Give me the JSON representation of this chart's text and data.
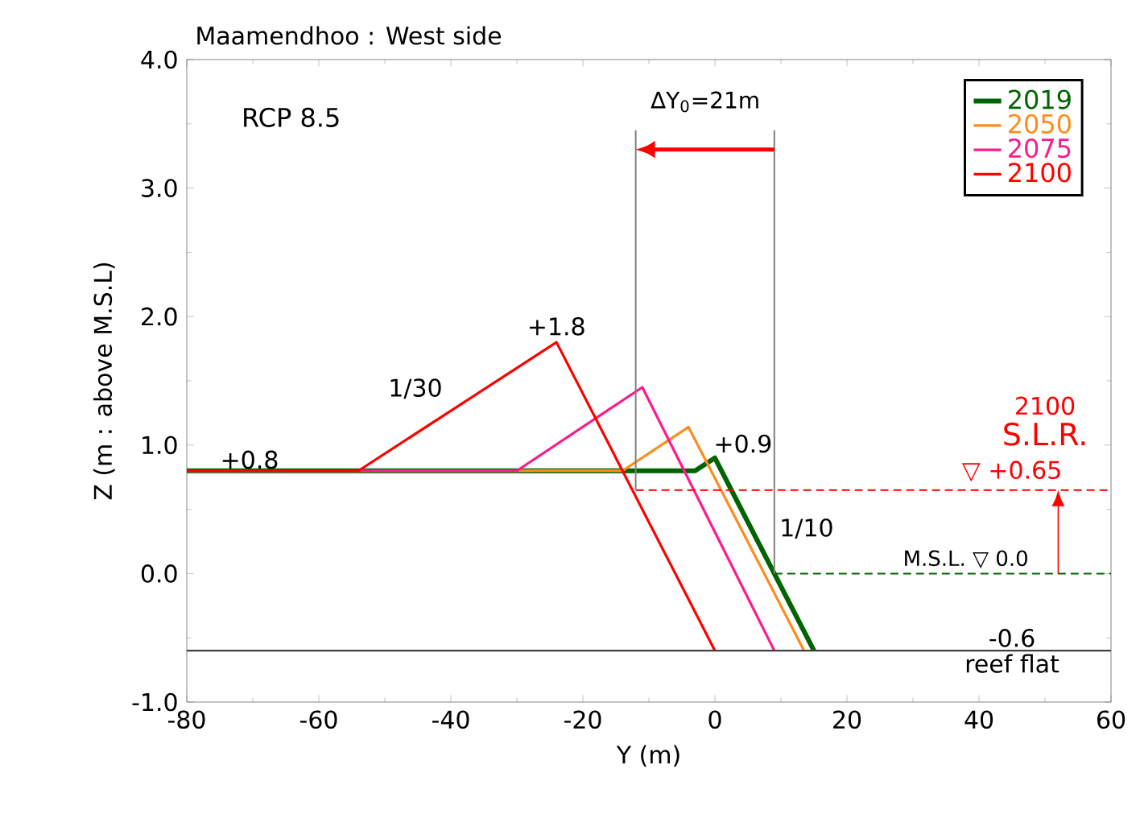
{
  "chart_data": {
    "type": "line",
    "title": "Maamendhoo : West side",
    "xlabel": "Y (m)",
    "ylabel": "Z (m : above M.S.L)",
    "xlim": [
      -80,
      60
    ],
    "xticks": [
      -80,
      -60,
      -40,
      -20,
      0,
      20,
      40,
      60
    ],
    "ylim": [
      -1,
      4
    ],
    "yticks": [
      {
        "value": -1,
        "label": "-1.0"
      },
      {
        "value": 0,
        "label": "0.0"
      },
      {
        "value": 1,
        "label": "1.0"
      },
      {
        "value": 2,
        "label": "2.0"
      },
      {
        "value": 3,
        "label": "3.0"
      },
      {
        "value": 4,
        "label": "4.0"
      }
    ],
    "grid": false,
    "legend": "top right",
    "marker": "none",
    "series": [
      {
        "name": "2019",
        "color": "#006400",
        "x": [
          -80,
          -3,
          0,
          15
        ],
        "values": [
          0.8,
          0.8,
          0.9,
          -0.6
        ]
      },
      {
        "name": "2050",
        "color": "#ff8c1a",
        "x": [
          -80,
          -14,
          -4,
          13.5
        ],
        "values": [
          0.8,
          0.8,
          1.14,
          -0.6
        ]
      },
      {
        "name": "2075",
        "color": "#ff1a8c",
        "x": [
          -80,
          -30,
          -11,
          9
        ],
        "values": [
          0.8,
          0.8,
          1.45,
          -0.6
        ]
      },
      {
        "name": "2100",
        "color": "#ff0000",
        "x": [
          -80,
          -54,
          -24,
          0
        ],
        "values": [
          0.8,
          0.8,
          1.8,
          -0.6
        ]
      },
      {
        "color": "#ff0000",
        "line_style": "dashed",
        "x": [
          -12,
          60
        ],
        "values": [
          0.65,
          0.65
        ]
      },
      {
        "color": "#006400",
        "line_style": "dashed",
        "x": [
          9,
          60
        ],
        "values": [
          0,
          0
        ]
      },
      {
        "color": "#808080",
        "x": [
          -12,
          -12
        ],
        "values": [
          0.65,
          3.45
        ]
      },
      {
        "color": "#808080",
        "x": [
          9,
          9
        ],
        "values": [
          0,
          3.45
        ]
      }
    ],
    "ref_lines": [
      {
        "axis": "y",
        "value": -0.6,
        "color": "#404040"
      }
    ],
    "annotations": [
      "RCP 8.5",
      {
        "text": "ΔY$_{0}$=21m",
        "x": -12,
        "y": 3.3
      },
      {
        "text": "+0.8",
        "x": -70,
        "y": 0.8
      },
      {
        "text": "1/30",
        "x": -40,
        "y": 1.27
      },
      {
        "text": "+1.8",
        "x": -24,
        "y": 1.8
      },
      {
        "text": "+0.9",
        "x": 0,
        "y": 0.9
      },
      {
        "text": "1/10",
        "x": 9,
        "y": 0.35
      },
      "2100",
      "S.L.R.",
      {
        "text": "▽ +0.65",
        "x": 45,
        "y": 0.65
      },
      {
        "text": "M.S.L. ▽ 0.0",
        "x": 38,
        "y": 0
      },
      {
        "text": "-0.6",
        "x": 45,
        "y": -0.6
      },
      {
        "text": "reef flat",
        "x": 45,
        "y": -0.6
      }
    ]
  }
}
